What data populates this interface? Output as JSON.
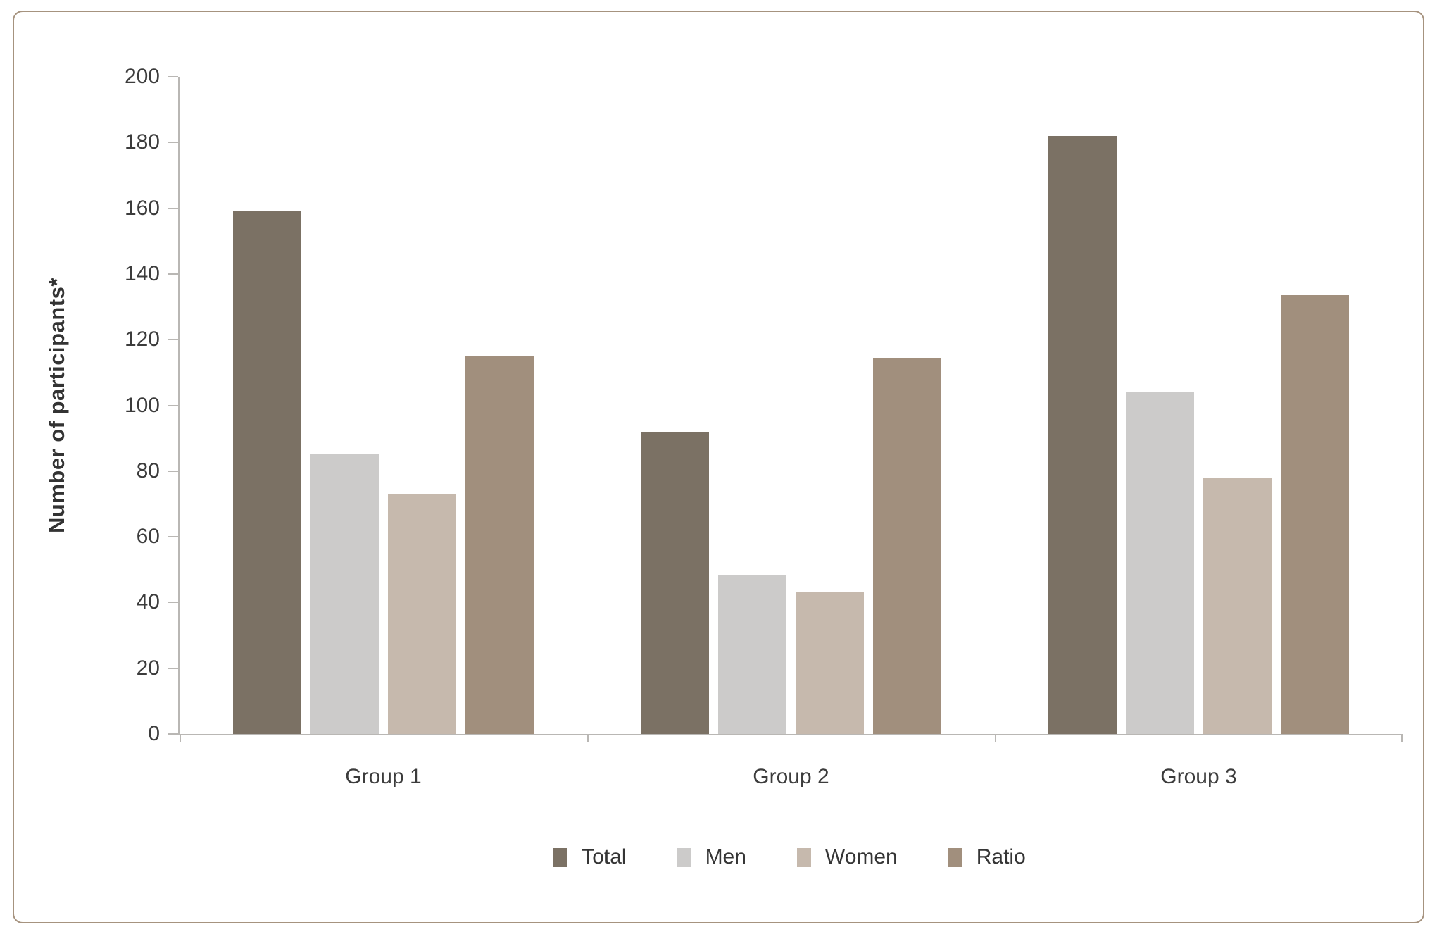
{
  "chart_data": {
    "type": "bar",
    "title": "",
    "categories": [
      "Group 1",
      "Group 2",
      "Group 3"
    ],
    "series": [
      {
        "name": "Total",
        "color": "#7b7164",
        "values": [
          159,
          92,
          182
        ]
      },
      {
        "name": "Men",
        "color": "#cccbca",
        "values": [
          85,
          48.5,
          104
        ]
      },
      {
        "name": "Women",
        "color": "#c6b9ad",
        "values": [
          73,
          43,
          78
        ]
      },
      {
        "name": "Ratio",
        "color": "#a18f7d",
        "values": [
          115,
          114.5,
          133.5
        ]
      }
    ],
    "ylabel": "Number of participants*",
    "xlabel": "",
    "ylim": [
      0,
      200
    ],
    "ytick_step": 20,
    "ytick_labels": [
      "0",
      "20",
      "40",
      "60",
      "80",
      "100",
      "120",
      "140",
      "160",
      "180",
      "200"
    ],
    "grid": false,
    "legend_position": "bottom"
  },
  "style": {
    "card_border_color": "#a6937f",
    "axis_color": "#b9b7b4",
    "text_color": "#3c3c3c",
    "background": "#ffffff"
  }
}
